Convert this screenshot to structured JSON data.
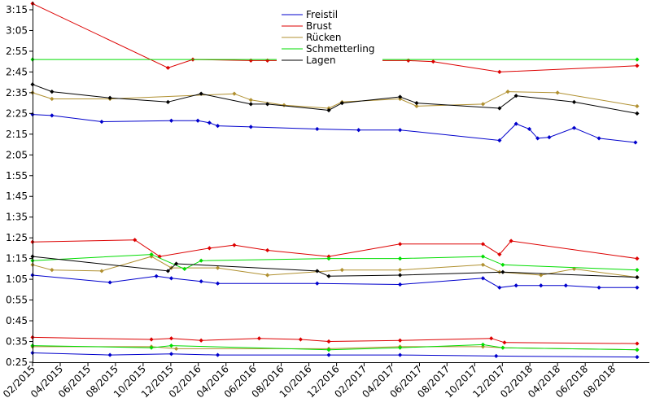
{
  "chart_data": {
    "type": "line",
    "title": "",
    "xlabel": "",
    "ylabel": "",
    "y_unit": "seconds (ticks shown as m:ss)",
    "ylim": [
      25,
      200
    ],
    "y_ticks": [
      {
        "v": 195,
        "label": "3:15"
      },
      {
        "v": 185,
        "label": "3:05"
      },
      {
        "v": 175,
        "label": "2:55"
      },
      {
        "v": 165,
        "label": "2:45"
      },
      {
        "v": 155,
        "label": "2:35"
      },
      {
        "v": 145,
        "label": "2:25"
      },
      {
        "v": 135,
        "label": "2:15"
      },
      {
        "v": 125,
        "label": "2:05"
      },
      {
        "v": 115,
        "label": "1:55"
      },
      {
        "v": 105,
        "label": "1:45"
      },
      {
        "v": 95,
        "label": "1:35"
      },
      {
        "v": 85,
        "label": "1:25"
      },
      {
        "v": 75,
        "label": "1:15"
      },
      {
        "v": 65,
        "label": "1:05"
      },
      {
        "v": 55,
        "label": "0:55"
      },
      {
        "v": 45,
        "label": "0:45"
      },
      {
        "v": 35,
        "label": "0:35"
      },
      {
        "v": 25,
        "label": "0:25"
      }
    ],
    "xlim": [
      2015.083,
      2018.75
    ],
    "x_ticks": [
      {
        "v": 2015.083,
        "label": "02/2015"
      },
      {
        "v": 2015.25,
        "label": "04/2015"
      },
      {
        "v": 2015.417,
        "label": "06/2015"
      },
      {
        "v": 2015.583,
        "label": "08/2015"
      },
      {
        "v": 2015.75,
        "label": "10/2015"
      },
      {
        "v": 2015.917,
        "label": "12/2015"
      },
      {
        "v": 2016.083,
        "label": "02/2016"
      },
      {
        "v": 2016.25,
        "label": "04/2016"
      },
      {
        "v": 2016.417,
        "label": "06/2016"
      },
      {
        "v": 2016.583,
        "label": "08/2016"
      },
      {
        "v": 2016.75,
        "label": "10/2016"
      },
      {
        "v": 2016.917,
        "label": "12/2016"
      },
      {
        "v": 2017.083,
        "label": "02/2017"
      },
      {
        "v": 2017.25,
        "label": "04/2017"
      },
      {
        "v": 2017.417,
        "label": "06/2017"
      },
      {
        "v": 2017.583,
        "label": "08/2017"
      },
      {
        "v": 2017.75,
        "label": "10/2017"
      },
      {
        "v": 2017.917,
        "label": "12/2017"
      },
      {
        "v": 2018.083,
        "label": "02/2018"
      },
      {
        "v": 2018.25,
        "label": "04/2018"
      },
      {
        "v": 2018.417,
        "label": "06/2018"
      },
      {
        "v": 2018.583,
        "label": "08/2018"
      }
    ],
    "legend_position": "top-center",
    "series": [
      {
        "name": "Freistil",
        "color": "#0000cc",
        "distance": "200m",
        "points": [
          [
            2015.083,
            144.5
          ],
          [
            2015.2,
            144
          ],
          [
            2015.5,
            141
          ],
          [
            2015.92,
            141.5
          ],
          [
            2016.08,
            141.5
          ],
          [
            2016.15,
            140.5
          ],
          [
            2016.2,
            139
          ],
          [
            2016.4,
            138.5
          ],
          [
            2016.8,
            137.5
          ],
          [
            2017.05,
            137
          ],
          [
            2017.3,
            137
          ],
          [
            2017.9,
            132
          ],
          [
            2018.0,
            140
          ],
          [
            2018.08,
            137.5
          ],
          [
            2018.13,
            133
          ],
          [
            2018.2,
            133.5
          ],
          [
            2018.35,
            138
          ],
          [
            2018.5,
            133
          ],
          [
            2018.72,
            131
          ]
        ]
      },
      {
        "name": "Brust",
        "color": "#dd0000",
        "distance": "200m",
        "points": [
          [
            2015.083,
            198
          ],
          [
            2015.9,
            167
          ],
          [
            2016.05,
            171
          ],
          [
            2016.4,
            170.5
          ],
          [
            2016.5,
            170.5
          ],
          [
            2017.35,
            170.5
          ],
          [
            2017.5,
            170
          ],
          [
            2017.9,
            165
          ],
          [
            2018.73,
            168
          ]
        ]
      },
      {
        "name": "Rücken",
        "color": "#b09030",
        "distance": "200m",
        "points": [
          [
            2015.083,
            155
          ],
          [
            2015.2,
            152
          ],
          [
            2015.55,
            152
          ],
          [
            2016.3,
            154.5
          ],
          [
            2016.4,
            151.5
          ],
          [
            2016.6,
            149
          ],
          [
            2016.87,
            147.5
          ],
          [
            2016.95,
            150.5
          ],
          [
            2017.3,
            152
          ],
          [
            2017.4,
            148.5
          ],
          [
            2017.8,
            149.5
          ],
          [
            2017.95,
            155.5
          ],
          [
            2018.25,
            155
          ],
          [
            2018.73,
            148.5
          ]
        ]
      },
      {
        "name": "Schmetterling",
        "color": "#00dd00",
        "distance": "200m",
        "points": [
          [
            2015.083,
            171
          ],
          [
            2018.73,
            171
          ]
        ]
      },
      {
        "name": "Lagen",
        "color": "#000000",
        "distance": "200m",
        "points": [
          [
            2015.083,
            159
          ],
          [
            2015.2,
            155.5
          ],
          [
            2015.55,
            152.5
          ],
          [
            2015.9,
            150.5
          ],
          [
            2016.1,
            154.5
          ],
          [
            2016.4,
            149.5
          ],
          [
            2016.5,
            149.5
          ],
          [
            2016.87,
            146.5
          ],
          [
            2016.95,
            150
          ],
          [
            2017.3,
            153
          ],
          [
            2017.4,
            150
          ],
          [
            2017.9,
            147.5
          ],
          [
            2018.0,
            153.5
          ],
          [
            2018.35,
            150.5
          ],
          [
            2018.73,
            145
          ]
        ]
      },
      {
        "name": "Freistil",
        "color": "#0000cc",
        "distance": "100m",
        "show_in_legend": false,
        "points": [
          [
            2015.083,
            67
          ],
          [
            2015.55,
            63.5
          ],
          [
            2015.83,
            66.5
          ],
          [
            2015.92,
            65.5
          ],
          [
            2016.1,
            64
          ],
          [
            2016.2,
            63
          ],
          [
            2016.8,
            63
          ],
          [
            2017.3,
            62.5
          ],
          [
            2017.8,
            65.5
          ],
          [
            2017.9,
            61
          ],
          [
            2018.0,
            62
          ],
          [
            2018.15,
            62
          ],
          [
            2018.3,
            62
          ],
          [
            2018.5,
            61
          ],
          [
            2018.73,
            61
          ]
        ]
      },
      {
        "name": "Brust",
        "color": "#dd0000",
        "distance": "100m",
        "show_in_legend": false,
        "points": [
          [
            2015.083,
            83
          ],
          [
            2015.7,
            84
          ],
          [
            2015.85,
            76
          ],
          [
            2016.15,
            80
          ],
          [
            2016.3,
            81.5
          ],
          [
            2016.5,
            79
          ],
          [
            2016.87,
            76
          ],
          [
            2017.3,
            82
          ],
          [
            2017.8,
            82
          ],
          [
            2017.9,
            77
          ],
          [
            2017.97,
            83.5
          ],
          [
            2018.73,
            75
          ]
        ]
      },
      {
        "name": "Rücken",
        "color": "#b09030",
        "distance": "100m",
        "show_in_legend": false,
        "points": [
          [
            2015.083,
            72
          ],
          [
            2015.2,
            69.5
          ],
          [
            2015.5,
            69
          ],
          [
            2015.8,
            76
          ],
          [
            2015.92,
            70.5
          ],
          [
            2016.2,
            70.5
          ],
          [
            2016.5,
            67
          ],
          [
            2016.95,
            69.5
          ],
          [
            2017.3,
            69.5
          ],
          [
            2017.8,
            72
          ],
          [
            2017.9,
            68.5
          ],
          [
            2018.15,
            67
          ],
          [
            2018.35,
            70
          ],
          [
            2018.73,
            66
          ]
        ]
      },
      {
        "name": "Schmetterling",
        "color": "#00dd00",
        "distance": "100m",
        "show_in_legend": false,
        "points": [
          [
            2015.083,
            74
          ],
          [
            2015.8,
            77
          ],
          [
            2016.0,
            70
          ],
          [
            2016.1,
            74
          ],
          [
            2016.87,
            75
          ],
          [
            2017.3,
            75
          ],
          [
            2017.8,
            76
          ],
          [
            2017.92,
            72
          ],
          [
            2018.73,
            69.5
          ]
        ]
      },
      {
        "name": "Lagen",
        "color": "#000000",
        "distance": "100m",
        "show_in_legend": false,
        "points": [
          [
            2015.083,
            76
          ],
          [
            2015.9,
            69
          ],
          [
            2015.95,
            72.5
          ],
          [
            2016.8,
            69
          ],
          [
            2016.87,
            66.5
          ],
          [
            2017.3,
            67
          ],
          [
            2017.92,
            68.5
          ],
          [
            2018.73,
            66
          ]
        ]
      },
      {
        "name": "Freistil",
        "color": "#0000cc",
        "distance": "50m",
        "show_in_legend": false,
        "points": [
          [
            2015.083,
            29.5
          ],
          [
            2015.55,
            28.5
          ],
          [
            2015.92,
            29
          ],
          [
            2016.2,
            28.5
          ],
          [
            2016.87,
            28.5
          ],
          [
            2017.3,
            28.5
          ],
          [
            2017.88,
            28
          ],
          [
            2018.73,
            27.5
          ]
        ]
      },
      {
        "name": "Brust",
        "color": "#dd0000",
        "distance": "50m",
        "show_in_legend": false,
        "points": [
          [
            2015.083,
            37
          ],
          [
            2015.8,
            36
          ],
          [
            2015.92,
            36.5
          ],
          [
            2016.1,
            35.5
          ],
          [
            2016.45,
            36.5
          ],
          [
            2016.7,
            36
          ],
          [
            2016.87,
            35
          ],
          [
            2017.3,
            35.5
          ],
          [
            2017.85,
            36.5
          ],
          [
            2017.93,
            34.5
          ],
          [
            2018.73,
            34
          ]
        ]
      },
      {
        "name": "Rücken",
        "color": "#b09030",
        "distance": "50m",
        "show_in_legend": false,
        "points": [
          [
            2015.083,
            32.5
          ],
          [
            2015.8,
            32.5
          ],
          [
            2015.95,
            31.5
          ],
          [
            2016.87,
            31.5
          ],
          [
            2017.3,
            32.5
          ],
          [
            2017.8,
            32.5
          ],
          [
            2017.92,
            32
          ],
          [
            2018.73,
            31
          ]
        ]
      },
      {
        "name": "Schmetterling",
        "color": "#00dd00",
        "distance": "50m",
        "show_in_legend": false,
        "points": [
          [
            2015.083,
            33
          ],
          [
            2015.8,
            32
          ],
          [
            2015.92,
            33
          ],
          [
            2016.87,
            31
          ],
          [
            2017.3,
            32
          ],
          [
            2017.8,
            33.5
          ],
          [
            2017.92,
            32
          ],
          [
            2018.73,
            31
          ]
        ]
      }
    ]
  }
}
